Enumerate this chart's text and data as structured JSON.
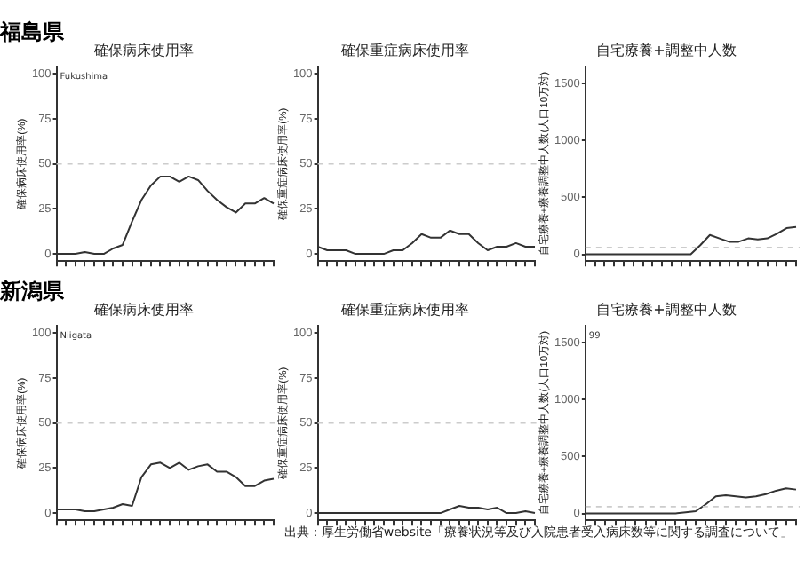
{
  "chart_data": [
    {
      "type": "line",
      "subtitle": "福島県",
      "title": "確保病床使用率",
      "ylabel": "確保病床使用率(%)",
      "annotations": [
        "Fukushima"
      ],
      "categories": [
        null,
        null,
        null,
        null,
        null,
        null,
        null,
        null,
        null,
        null,
        null,
        null,
        null,
        null,
        null,
        null,
        null,
        null,
        null,
        null,
        null,
        null,
        null,
        null
      ],
      "values": [
        0,
        0,
        0,
        1,
        0,
        0,
        3,
        5,
        18,
        30,
        38,
        43,
        43,
        40,
        43,
        41,
        35,
        30,
        26,
        23,
        28,
        28,
        31,
        28
      ],
      "color": "#333333",
      "ylim": [
        -4,
        104
      ],
      "yticks": [
        0,
        25,
        50,
        75,
        100
      ],
      "ref_lines": [
        {
          "axis": "y",
          "value": 50,
          "color": "#cccccc",
          "line_style": "dashed"
        }
      ],
      "tick_labels": "y"
    },
    {
      "type": "line",
      "title": "確保重症病床使用率",
      "ylabel": "確保重症病床使用率(%)",
      "categories": [
        null,
        null,
        null,
        null,
        null,
        null,
        null,
        null,
        null,
        null,
        null,
        null,
        null,
        null,
        null,
        null,
        null,
        null,
        null,
        null,
        null,
        null,
        null,
        null
      ],
      "values": [
        4,
        2,
        2,
        2,
        0,
        0,
        0,
        0,
        2,
        2,
        6,
        11,
        9,
        9,
        13,
        11,
        11,
        6,
        2,
        4,
        4,
        6,
        4,
        4
      ],
      "color": "#333333",
      "ylim": [
        -4,
        104
      ],
      "yticks": [
        0,
        25,
        50,
        75,
        100
      ],
      "ref_lines": [
        {
          "axis": "y",
          "value": 50,
          "color": "#cccccc",
          "line_style": "dashed"
        }
      ],
      "tick_labels": "y"
    },
    {
      "type": "line",
      "title": "自宅療養+調整中人数",
      "ylabel": "自宅療養+療養調整中人数(人口10万対)",
      "categories": [
        null,
        null,
        null,
        null,
        null,
        null,
        null,
        null,
        null,
        null,
        null,
        null,
        null,
        null,
        null,
        null,
        null,
        null,
        null,
        null,
        null,
        null,
        null
      ],
      "values": [
        0,
        0,
        0,
        0,
        0,
        0,
        0,
        0,
        0,
        0,
        0,
        0,
        80,
        170,
        140,
        110,
        110,
        140,
        130,
        140,
        180,
        230,
        240
      ],
      "color": "#333333",
      "ylim": [
        -60,
        1650
      ],
      "yticks": [
        0,
        500,
        1000,
        1500
      ],
      "ref_lines": [
        {
          "axis": "y",
          "value": 60,
          "color": "#cccccc",
          "line_style": "dashed"
        }
      ],
      "tick_labels": "y"
    },
    {
      "type": "line",
      "subtitle": "新潟県",
      "title": "確保病床使用率",
      "ylabel": "確保病床使用率(%)",
      "annotations": [
        "Niigata"
      ],
      "categories": [
        null,
        null,
        null,
        null,
        null,
        null,
        null,
        null,
        null,
        null,
        null,
        null,
        null,
        null,
        null,
        null,
        null,
        null,
        null,
        null,
        null,
        null,
        null,
        null
      ],
      "values": [
        2,
        2,
        2,
        1,
        1,
        2,
        3,
        5,
        4,
        20,
        27,
        28,
        25,
        28,
        24,
        26,
        27,
        23,
        23,
        20,
        15,
        15,
        18,
        19
      ],
      "color": "#333333",
      "ylim": [
        -4,
        104
      ],
      "yticks": [
        0,
        25,
        50,
        75,
        100
      ],
      "ref_lines": [
        {
          "axis": "y",
          "value": 50,
          "color": "#cccccc",
          "line_style": "dashed"
        }
      ],
      "tick_labels": "y"
    },
    {
      "type": "line",
      "title": "確保重症病床使用率",
      "ylabel": "確保重症病床使用率(%)",
      "categories": [
        null,
        null,
        null,
        null,
        null,
        null,
        null,
        null,
        null,
        null,
        null,
        null,
        null,
        null,
        null,
        null,
        null,
        null,
        null,
        null,
        null,
        null,
        null,
        null
      ],
      "values": [
        0,
        0,
        0,
        0,
        0,
        0,
        0,
        0,
        0,
        0,
        0,
        0,
        0,
        0,
        2,
        4,
        3,
        3,
        2,
        3,
        0,
        0,
        1,
        0
      ],
      "color": "#333333",
      "ylim": [
        -4,
        104
      ],
      "yticks": [
        0,
        25,
        50,
        75,
        100
      ],
      "ref_lines": [
        {
          "axis": "y",
          "value": 50,
          "color": "#cccccc",
          "line_style": "dashed"
        }
      ],
      "tick_labels": "y"
    },
    {
      "type": "line",
      "title": "自宅療養+調整中人数",
      "ylabel": "自宅療養+療養調整中人数(人口10万対)",
      "annotations": [
        "99",
        "出典：厚生労働省website「療養状況等及び入院患者受入病床数等に関する調査について」"
      ],
      "categories": [
        null,
        null,
        null,
        null,
        null,
        null,
        null,
        null,
        null,
        null,
        null,
        null,
        null,
        null,
        null,
        null,
        null,
        null,
        null,
        null,
        null,
        null
      ],
      "values": [
        0,
        0,
        0,
        0,
        0,
        0,
        0,
        0,
        0,
        0,
        10,
        20,
        80,
        150,
        160,
        150,
        140,
        150,
        170,
        200,
        220,
        210
      ],
      "color": "#333333",
      "ylim": [
        -60,
        1650
      ],
      "yticks": [
        0,
        500,
        1000,
        1500
      ],
      "ref_lines": [
        {
          "axis": "y",
          "value": 60,
          "color": "#cccccc",
          "line_style": "dashed"
        }
      ],
      "tick_labels": "y"
    }
  ]
}
